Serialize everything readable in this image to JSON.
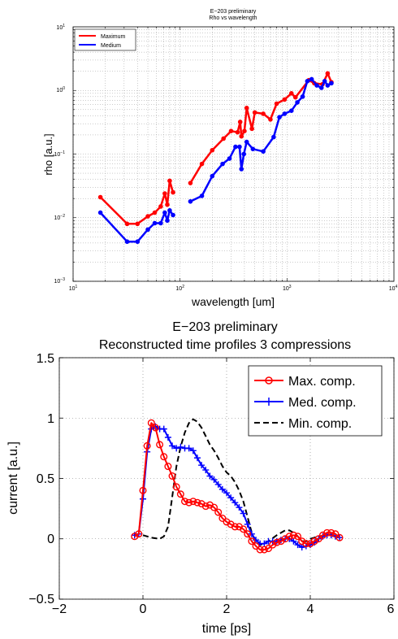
{
  "chart_data": [
    {
      "type": "line",
      "title": [
        "E−203 preliminary",
        "Rho vs wavelength"
      ],
      "xlabel": "wavelength [um]",
      "ylabel": "rho [a.u.]",
      "xscale": "log",
      "yscale": "log",
      "xlim": [
        10,
        10000
      ],
      "ylim": [
        0.001,
        10
      ],
      "grid": true,
      "legend_position": "top-left",
      "x_ticks": [
        {
          "base": "10",
          "exp": "1"
        },
        {
          "base": "10",
          "exp": "2"
        },
        {
          "base": "10",
          "exp": "3"
        },
        {
          "base": "10",
          "exp": "4"
        }
      ],
      "y_ticks": [
        {
          "base": "10",
          "exp": "−3"
        },
        {
          "base": "10",
          "exp": "−2"
        },
        {
          "base": "10",
          "exp": "−1"
        },
        {
          "base": "10",
          "exp": "0"
        },
        {
          "base": "10",
          "exp": "1"
        }
      ],
      "series": [
        {
          "name": "Maximum",
          "color": "#ff0000",
          "segments": [
            [
              [
                18,
                0.021
              ],
              [
                32,
                0.008
              ],
              [
                40,
                0.008
              ],
              [
                50,
                0.0105
              ],
              [
                58,
                0.012
              ],
              [
                66,
                0.015
              ],
              [
                72,
                0.024
              ],
              [
                76,
                0.016
              ],
              [
                80,
                0.038
              ],
              [
                86,
                0.025
              ]
            ],
            [
              [
                125,
                0.035
              ],
              [
                160,
                0.07
              ],
              [
                200,
                0.115
              ],
              [
                255,
                0.175
              ],
              [
                300,
                0.23
              ],
              [
                345,
                0.22
              ],
              [
                365,
                0.32
              ],
              [
                375,
                0.19
              ],
              [
                400,
                0.23
              ],
              [
                420,
                0.53
              ],
              [
                470,
                0.25
              ],
              [
                500,
                0.45
              ],
              [
                600,
                0.43
              ],
              [
                700,
                0.35
              ],
              [
                800,
                0.62
              ],
              [
                950,
                0.72
              ],
              [
                1100,
                0.9
              ],
              [
                1200,
                0.78
              ],
              [
                1600,
                1.45
              ],
              [
                1800,
                1.3
              ],
              [
                2150,
                1.25
              ],
              [
                2400,
                1.85
              ],
              [
                2600,
                1.35
              ]
            ]
          ]
        },
        {
          "name": "Medium",
          "color": "#0000ff",
          "segments": [
            [
              [
                18,
                0.012
              ],
              [
                32,
                0.0042
              ],
              [
                40,
                0.0042
              ],
              [
                50,
                0.0065
              ],
              [
                58,
                0.0082
              ],
              [
                66,
                0.0082
              ],
              [
                72,
                0.012
              ],
              [
                76,
                0.009
              ],
              [
                80,
                0.013
              ],
              [
                86,
                0.011
              ]
            ],
            [
              [
                125,
                0.018
              ],
              [
                160,
                0.022
              ],
              [
                200,
                0.045
              ],
              [
                250,
                0.07
              ],
              [
                290,
                0.085
              ],
              [
                330,
                0.13
              ],
              [
                360,
                0.13
              ],
              [
                375,
                0.058
              ],
              [
                395,
                0.1
              ],
              [
                420,
                0.155
              ],
              [
                480,
                0.12
              ],
              [
                600,
                0.11
              ],
              [
                750,
                0.185
              ],
              [
                850,
                0.38
              ],
              [
                950,
                0.43
              ],
              [
                1100,
                0.48
              ],
              [
                1250,
                0.65
              ],
              [
                1400,
                0.8
              ],
              [
                1550,
                1.4
              ],
              [
                1700,
                1.5
              ],
              [
                1900,
                1.2
              ],
              [
                2100,
                1.1
              ],
              [
                2250,
                1.4
              ],
              [
                2400,
                1.2
              ],
              [
                2600,
                1.3
              ]
            ]
          ]
        }
      ]
    },
    {
      "type": "line",
      "title": [
        "E−203 preliminary",
        "Reconstructed time profiles 3 compressions"
      ],
      "xlabel": "time [ps]",
      "ylabel": "current [a.u.]",
      "xlim": [
        -2,
        6
      ],
      "ylim": [
        -0.5,
        1.5
      ],
      "grid": true,
      "legend_position": "top-right",
      "x_ticks": [
        "−2",
        "0",
        "2",
        "4",
        "6"
      ],
      "y_ticks": [
        "−0.5",
        "0",
        "0.5",
        "1",
        "1.5"
      ],
      "series": [
        {
          "name": "Max. comp.",
          "color": "#ff0000",
          "marker": "circle",
          "style": "solid",
          "points": [
            [
              -0.2,
              0.02
            ],
            [
              -0.1,
              0.04
            ],
            [
              0,
              0.4
            ],
            [
              0.1,
              0.77
            ],
            [
              0.2,
              0.96
            ],
            [
              0.3,
              0.92
            ],
            [
              0.4,
              0.78
            ],
            [
              0.5,
              0.68
            ],
            [
              0.6,
              0.6
            ],
            [
              0.7,
              0.52
            ],
            [
              0.8,
              0.43
            ],
            [
              0.9,
              0.37
            ],
            [
              1.0,
              0.31
            ],
            [
              1.1,
              0.3
            ],
            [
              1.2,
              0.31
            ],
            [
              1.3,
              0.3
            ],
            [
              1.4,
              0.29
            ],
            [
              1.5,
              0.27
            ],
            [
              1.6,
              0.28
            ],
            [
              1.7,
              0.26
            ],
            [
              1.8,
              0.22
            ],
            [
              1.9,
              0.17
            ],
            [
              2.0,
              0.14
            ],
            [
              2.1,
              0.12
            ],
            [
              2.2,
              0.1
            ],
            [
              2.3,
              0.1
            ],
            [
              2.4,
              0.08
            ],
            [
              2.5,
              0.04
            ],
            [
              2.6,
              -0.02
            ],
            [
              2.7,
              -0.06
            ],
            [
              2.8,
              -0.09
            ],
            [
              2.9,
              -0.09
            ],
            [
              3.0,
              -0.08
            ],
            [
              3.1,
              -0.05
            ],
            [
              3.2,
              -0.03
            ],
            [
              3.3,
              -0.02
            ],
            [
              3.4,
              0.0
            ],
            [
              3.5,
              0.02
            ],
            [
              3.6,
              0.03
            ],
            [
              3.7,
              0.02
            ],
            [
              3.8,
              -0.02
            ],
            [
              3.9,
              -0.04
            ],
            [
              4.0,
              -0.04
            ],
            [
              4.1,
              -0.02
            ],
            [
              4.2,
              0.0
            ],
            [
              4.3,
              0.03
            ],
            [
              4.4,
              0.05
            ],
            [
              4.5,
              0.05
            ],
            [
              4.6,
              0.04
            ],
            [
              4.7,
              0.01
            ]
          ]
        },
        {
          "name": "Med. comp.",
          "color": "#0000ff",
          "marker": "plus",
          "style": "solid",
          "points": [
            [
              -0.2,
              0.03
            ],
            [
              -0.1,
              0.04
            ],
            [
              0,
              0.33
            ],
            [
              0.1,
              0.72
            ],
            [
              0.2,
              0.91
            ],
            [
              0.3,
              0.93
            ],
            [
              0.4,
              0.91
            ],
            [
              0.5,
              0.91
            ],
            [
              0.6,
              0.84
            ],
            [
              0.7,
              0.77
            ],
            [
              0.8,
              0.75
            ],
            [
              0.9,
              0.76
            ],
            [
              1.0,
              0.75
            ],
            [
              1.1,
              0.75
            ],
            [
              1.2,
              0.73
            ],
            [
              1.3,
              0.67
            ],
            [
              1.4,
              0.61
            ],
            [
              1.5,
              0.57
            ],
            [
              1.6,
              0.52
            ],
            [
              1.7,
              0.49
            ],
            [
              1.8,
              0.45
            ],
            [
              1.9,
              0.41
            ],
            [
              2.0,
              0.38
            ],
            [
              2.1,
              0.34
            ],
            [
              2.2,
              0.3
            ],
            [
              2.3,
              0.26
            ],
            [
              2.4,
              0.21
            ],
            [
              2.5,
              0.12
            ],
            [
              2.6,
              0.04
            ],
            [
              2.7,
              -0.01
            ],
            [
              2.8,
              -0.04
            ],
            [
              2.9,
              -0.04
            ],
            [
              3.0,
              -0.02
            ],
            [
              3.1,
              -0.02
            ],
            [
              3.2,
              -0.02
            ],
            [
              3.3,
              -0.01
            ],
            [
              3.4,
              0.0
            ],
            [
              3.5,
              0.0
            ],
            [
              3.6,
              -0.02
            ],
            [
              3.7,
              -0.05
            ],
            [
              3.8,
              -0.07
            ],
            [
              3.9,
              -0.06
            ],
            [
              4.0,
              -0.05
            ],
            [
              4.1,
              -0.03
            ],
            [
              4.2,
              0.0
            ],
            [
              4.3,
              0.02
            ],
            [
              4.4,
              0.03
            ],
            [
              4.5,
              0.03
            ],
            [
              4.6,
              0.02
            ],
            [
              4.7,
              0.01
            ]
          ]
        },
        {
          "name": "Min. comp.",
          "color": "#000000",
          "marker": "none",
          "style": "dashed",
          "points": [
            [
              0,
              0.03
            ],
            [
              0.2,
              0.01
            ],
            [
              0.4,
              0.0
            ],
            [
              0.5,
              0.02
            ],
            [
              0.6,
              0.1
            ],
            [
              0.7,
              0.35
            ],
            [
              0.8,
              0.6
            ],
            [
              0.9,
              0.76
            ],
            [
              1.0,
              0.88
            ],
            [
              1.1,
              0.96
            ],
            [
              1.2,
              0.99
            ],
            [
              1.3,
              0.97
            ],
            [
              1.4,
              0.92
            ],
            [
              1.5,
              0.85
            ],
            [
              1.6,
              0.78
            ],
            [
              1.7,
              0.73
            ],
            [
              1.8,
              0.67
            ],
            [
              1.9,
              0.6
            ],
            [
              2.0,
              0.55
            ],
            [
              2.1,
              0.52
            ],
            [
              2.2,
              0.47
            ],
            [
              2.3,
              0.4
            ],
            [
              2.4,
              0.31
            ],
            [
              2.5,
              0.18
            ],
            [
              2.6,
              0.05
            ],
            [
              2.7,
              -0.03
            ],
            [
              2.8,
              -0.05
            ],
            [
              2.9,
              -0.04
            ],
            [
              3.0,
              -0.02
            ],
            [
              3.2,
              0.03
            ],
            [
              3.4,
              0.07
            ],
            [
              3.5,
              0.07
            ],
            [
              3.6,
              0.05
            ],
            [
              3.7,
              0.02
            ],
            [
              3.8,
              -0.02
            ],
            [
              3.9,
              -0.02
            ],
            [
              4.0,
              0.0
            ],
            [
              4.2,
              0.02
            ],
            [
              4.4,
              0.03
            ],
            [
              4.6,
              0.03
            ],
            [
              4.7,
              0.02
            ]
          ]
        }
      ]
    }
  ]
}
